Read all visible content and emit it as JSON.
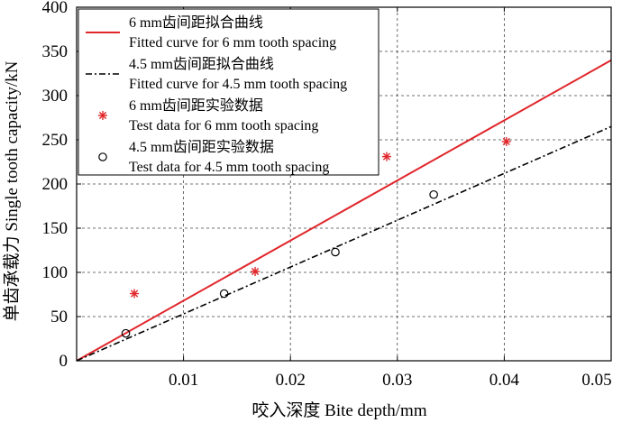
{
  "chart_data": {
    "type": "line",
    "title": "",
    "xlabel": "咬入深度 Bite depth/mm",
    "ylabel": "单齿承载力 Single tooth capacity/kN",
    "xlim": [
      0,
      0.05
    ],
    "ylim": [
      0,
      400
    ],
    "x_ticks": [
      "0.01",
      "0.02",
      "0.03",
      "0.04",
      "0.05"
    ],
    "y_ticks": [
      "0",
      "50",
      "100",
      "150",
      "200",
      "250",
      "300",
      "350",
      "400"
    ],
    "grid": true,
    "legend_position": "top-left",
    "series": [
      {
        "name_cn": "6 mm齿间距拟合曲线",
        "name": "Fitted curve for 6 mm tooth spacing",
        "kind": "line",
        "style": "solid",
        "color": "#e0262b",
        "x": [
          0,
          0.05
        ],
        "y": [
          0,
          340
        ]
      },
      {
        "name_cn": "4.5 mm齿间距拟合曲线",
        "name": "Fitted curve for 4.5 mm tooth spacing",
        "kind": "line",
        "style": "dash-dot",
        "color": "#000000",
        "x": [
          0,
          0.05
        ],
        "y": [
          0,
          265
        ]
      },
      {
        "name_cn": "6 mm齿间距实验数据",
        "name": "Test data for 6 mm tooth spacing",
        "kind": "scatter",
        "marker": "star",
        "color": "#e0262b",
        "x": [
          0.0054,
          0.0167,
          0.029,
          0.0402
        ],
        "y": [
          76,
          101,
          231,
          248
        ]
      },
      {
        "name_cn": "4.5 mm齿间距实验数据",
        "name": "Test data for 4.5 mm tooth spacing",
        "kind": "scatter",
        "marker": "circle",
        "color": "#000000",
        "x": [
          0.0046,
          0.0138,
          0.0242,
          0.0334
        ],
        "y": [
          31,
          76,
          123,
          188
        ]
      }
    ]
  }
}
